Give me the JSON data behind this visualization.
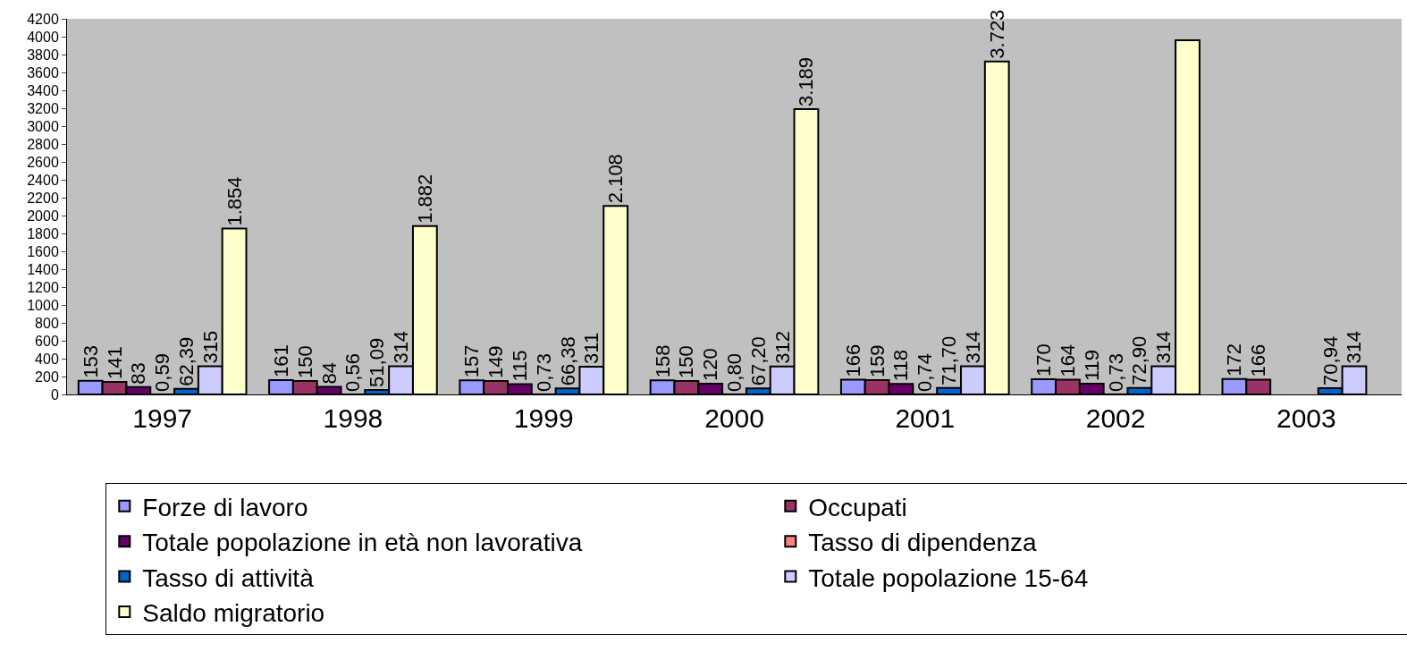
{
  "chart_data": {
    "type": "bar",
    "categories": [
      "1997",
      "1998",
      "1999",
      "2000",
      "2001",
      "2002",
      "2003"
    ],
    "series": [
      {
        "name": "Forze di lavoro",
        "color": "#9999ff",
        "values": [
          153,
          161,
          157,
          158,
          166,
          170,
          172
        ],
        "value_labels": [
          "153",
          "161",
          "157",
          "158",
          "166",
          "170",
          "172"
        ]
      },
      {
        "name": "Occupati",
        "color": "#993366",
        "values": [
          141,
          150,
          149,
          150,
          159,
          164,
          166
        ],
        "value_labels": [
          "141",
          "150",
          "149",
          "150",
          "159",
          "164",
          "166"
        ]
      },
      {
        "name": "Totale popolazione in età non lavorativa",
        "color": "#660066",
        "values": [
          83,
          84,
          115,
          120,
          118,
          119,
          null
        ],
        "value_labels": [
          "83",
          "84",
          "115",
          "120",
          "118",
          "119",
          null
        ]
      },
      {
        "name": "Tasso di dipendenza",
        "color": "#ff8080",
        "values": [
          0.59,
          0.56,
          0.73,
          0.8,
          0.74,
          0.73,
          null
        ],
        "value_labels": [
          "0,59",
          "0,56",
          "0,73",
          "0,80",
          "0,74",
          "0,73",
          null
        ]
      },
      {
        "name": "Tasso di attività",
        "color": "#0066cc",
        "values": [
          62.39,
          51.09,
          66.38,
          67.2,
          71.7,
          72.9,
          70.94
        ],
        "value_labels": [
          "62,39",
          "51,09",
          "66,38",
          "67,20",
          "71,70",
          "72,90",
          "70,94"
        ]
      },
      {
        "name": "Totale popolazione 15-64",
        "color": "#ccccff",
        "values": [
          315,
          314,
          311,
          312,
          314,
          314,
          314
        ],
        "value_labels": [
          "315",
          "314",
          "311",
          "312",
          "314",
          "314",
          "314"
        ]
      },
      {
        "name": "Saldo migratorio",
        "color": "#ffffcc",
        "values": [
          1854,
          1882,
          2108,
          3189,
          3723,
          3960,
          null
        ],
        "value_labels": [
          "1.854",
          "1.882",
          "2.108",
          "3.189",
          "3.723",
          null,
          null
        ]
      }
    ],
    "ylim": [
      0,
      4200
    ],
    "yticks": [
      0,
      200,
      400,
      600,
      800,
      1000,
      1200,
      1400,
      1600,
      1800,
      2000,
      2200,
      2400,
      2600,
      2800,
      3000,
      3200,
      3400,
      3600,
      3800,
      4000,
      4200
    ],
    "grid": false,
    "legend": "bottom"
  }
}
